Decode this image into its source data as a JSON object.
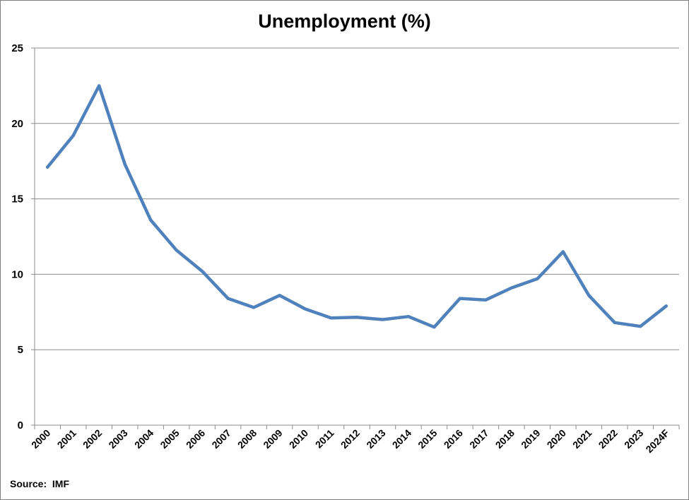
{
  "chart_data": {
    "type": "line",
    "title": "Unemployment (%)",
    "xlabel": "",
    "ylabel": "",
    "ylim": [
      0,
      25
    ],
    "yticks": [
      0,
      5,
      10,
      15,
      20,
      25
    ],
    "grid": true,
    "categories": [
      "2000",
      "2001",
      "2002",
      "2003",
      "2004",
      "2005",
      "2006",
      "2007",
      "2008",
      "2009",
      "2010",
      "2011",
      "2012",
      "2013",
      "2014",
      "2015",
      "2016",
      "2017",
      "2018",
      "2019",
      "2020",
      "2021",
      "2022",
      "2023",
      "2024F"
    ],
    "series": [
      {
        "name": "",
        "color": "#4f81bd",
        "values": [
          17.1,
          19.2,
          22.5,
          17.3,
          13.6,
          11.6,
          10.2,
          8.4,
          7.8,
          8.6,
          7.7,
          7.1,
          7.15,
          7.0,
          7.2,
          6.5,
          8.4,
          8.3,
          9.1,
          9.7,
          11.5,
          8.6,
          6.8,
          6.55,
          7.9
        ]
      }
    ]
  },
  "source": "Source:  IMF"
}
